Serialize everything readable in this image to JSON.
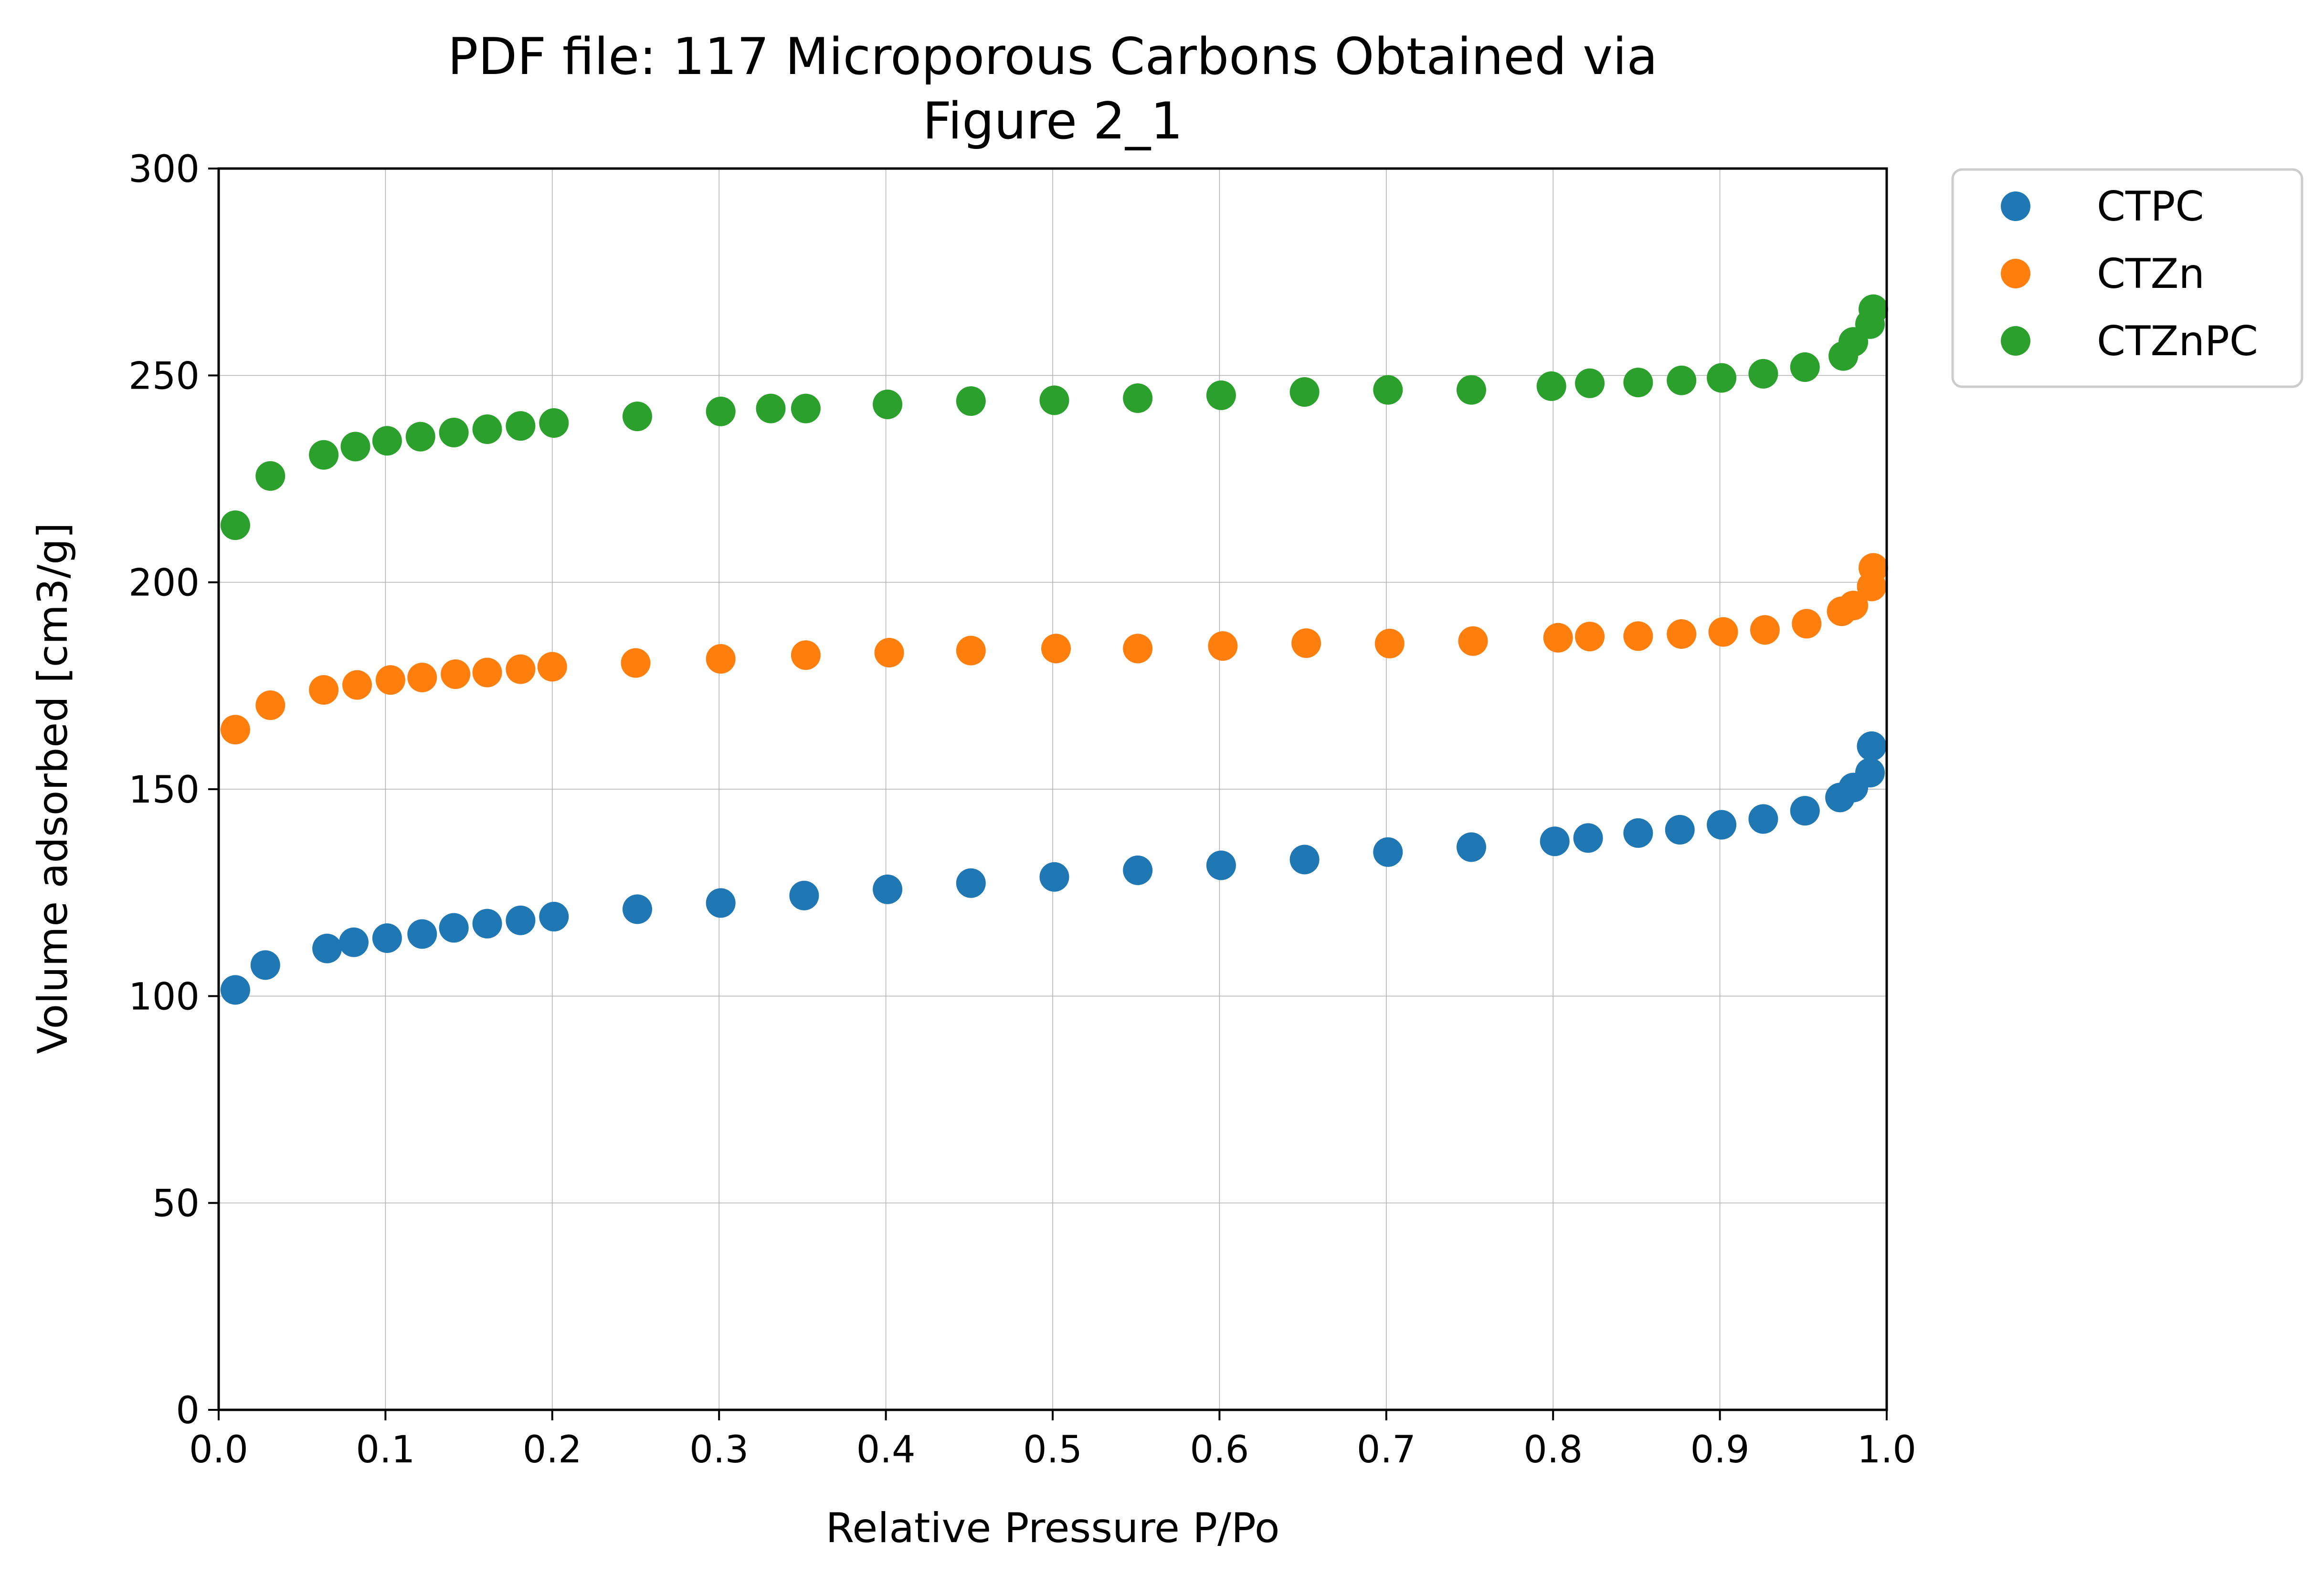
{
  "chart_data": {
    "type": "scatter",
    "title_line1": "PDF file: 117 Microporous Carbons Obtained via",
    "title_line2": "Figure 2_1",
    "xlabel": "Relative Pressure P/Po",
    "ylabel": "Volume adsorbed [cm3/g]",
    "xlim": [
      0.0,
      1.0
    ],
    "ylim": [
      0,
      300
    ],
    "xticks": [
      "0.0",
      "0.1",
      "0.2",
      "0.3",
      "0.4",
      "0.5",
      "0.6",
      "0.7",
      "0.8",
      "0.9",
      "1.0"
    ],
    "yticks": [
      "0",
      "50",
      "100",
      "150",
      "200",
      "250",
      "300"
    ],
    "grid": true,
    "legend_position": "outside-top-right",
    "series": [
      {
        "name": "CTPC",
        "color": "#1f77b4",
        "points": [
          [
            0.01,
            101.5
          ],
          [
            0.028,
            107.5
          ],
          [
            0.065,
            111.5
          ],
          [
            0.081,
            113.0
          ],
          [
            0.101,
            114.0
          ],
          [
            0.122,
            115.0
          ],
          [
            0.141,
            116.5
          ],
          [
            0.161,
            117.5
          ],
          [
            0.181,
            118.3
          ],
          [
            0.201,
            119.2
          ],
          [
            0.251,
            121.0
          ],
          [
            0.301,
            122.5
          ],
          [
            0.351,
            124.3
          ],
          [
            0.401,
            125.8
          ],
          [
            0.451,
            127.3
          ],
          [
            0.501,
            128.8
          ],
          [
            0.551,
            130.4
          ],
          [
            0.601,
            131.6
          ],
          [
            0.651,
            133.0
          ],
          [
            0.701,
            134.8
          ],
          [
            0.751,
            136.0
          ],
          [
            0.801,
            137.4
          ],
          [
            0.821,
            138.2
          ],
          [
            0.851,
            139.4
          ],
          [
            0.876,
            140.2
          ],
          [
            0.901,
            141.4
          ],
          [
            0.926,
            142.8
          ],
          [
            0.951,
            144.8
          ],
          [
            0.972,
            148.0
          ],
          [
            0.98,
            150.4
          ],
          [
            0.99,
            154.0
          ],
          [
            0.991,
            160.4
          ]
        ]
      },
      {
        "name": "CTZn",
        "color": "#ff7f0e",
        "points": [
          [
            0.01,
            164.4
          ],
          [
            0.031,
            170.3
          ],
          [
            0.063,
            174.0
          ],
          [
            0.083,
            175.2
          ],
          [
            0.103,
            176.4
          ],
          [
            0.122,
            177.0
          ],
          [
            0.142,
            177.8
          ],
          [
            0.161,
            178.2
          ],
          [
            0.181,
            179.0
          ],
          [
            0.2,
            179.6
          ],
          [
            0.25,
            180.5
          ],
          [
            0.301,
            181.5
          ],
          [
            0.352,
            182.4
          ],
          [
            0.402,
            183.0
          ],
          [
            0.451,
            183.5
          ],
          [
            0.502,
            184.0
          ],
          [
            0.551,
            184.0
          ],
          [
            0.602,
            184.6
          ],
          [
            0.652,
            185.3
          ],
          [
            0.702,
            185.2
          ],
          [
            0.752,
            185.8
          ],
          [
            0.803,
            186.6
          ],
          [
            0.822,
            186.9
          ],
          [
            0.851,
            187.0
          ],
          [
            0.877,
            187.5
          ],
          [
            0.902,
            188.0
          ],
          [
            0.927,
            188.5
          ],
          [
            0.952,
            190.0
          ],
          [
            0.973,
            193.0
          ],
          [
            0.98,
            194.4
          ],
          [
            0.991,
            199.0
          ],
          [
            0.992,
            203.5
          ]
        ]
      },
      {
        "name": "CTZnPC",
        "color": "#2ca02c",
        "points": [
          [
            0.01,
            213.8
          ],
          [
            0.031,
            225.7
          ],
          [
            0.063,
            230.8
          ],
          [
            0.082,
            232.8
          ],
          [
            0.101,
            234.2
          ],
          [
            0.121,
            235.2
          ],
          [
            0.141,
            236.2
          ],
          [
            0.161,
            237.0
          ],
          [
            0.181,
            237.8
          ],
          [
            0.201,
            238.5
          ],
          [
            0.251,
            240.1
          ],
          [
            0.301,
            241.3
          ],
          [
            0.331,
            242.0
          ],
          [
            0.352,
            242.0
          ],
          [
            0.401,
            243.0
          ],
          [
            0.451,
            243.8
          ],
          [
            0.501,
            244.0
          ],
          [
            0.551,
            244.5
          ],
          [
            0.601,
            245.2
          ],
          [
            0.651,
            246.0
          ],
          [
            0.701,
            246.5
          ],
          [
            0.751,
            246.5
          ],
          [
            0.799,
            247.4
          ],
          [
            0.822,
            248.1
          ],
          [
            0.851,
            248.3
          ],
          [
            0.877,
            248.8
          ],
          [
            0.901,
            249.4
          ],
          [
            0.926,
            250.4
          ],
          [
            0.951,
            252.0
          ],
          [
            0.974,
            254.7
          ],
          [
            0.98,
            258.1
          ],
          [
            0.99,
            262.4
          ],
          [
            0.992,
            266.0
          ]
        ]
      }
    ]
  }
}
